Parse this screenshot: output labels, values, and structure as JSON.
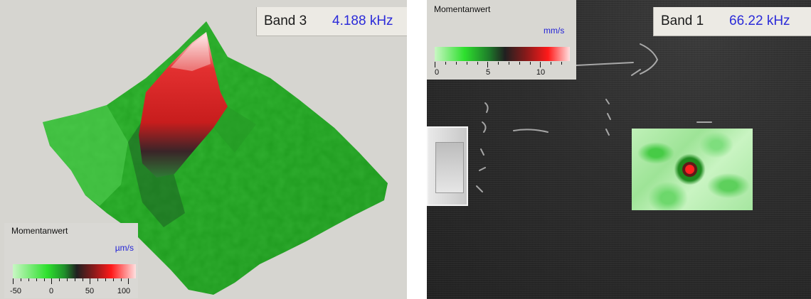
{
  "left_view": {
    "band_label": "Band 3",
    "band_frequency": "4.188 kHz",
    "legend": {
      "title": "Momentanwert",
      "unit": "µm/s",
      "ticks": [
        "-50",
        "0",
        "50",
        "100"
      ]
    }
  },
  "right_view": {
    "band_label": "Band 1",
    "band_frequency": "66.22 kHz",
    "legend": {
      "title": "Momentanwert",
      "unit": "mm/s",
      "ticks": [
        "0",
        "5",
        "10"
      ]
    }
  },
  "colors": {
    "frequency_text": "#2b2bd9",
    "low": "#33cc33",
    "mid": "#202020",
    "high": "#ff1a1a",
    "peak": "#ffe0e0"
  }
}
